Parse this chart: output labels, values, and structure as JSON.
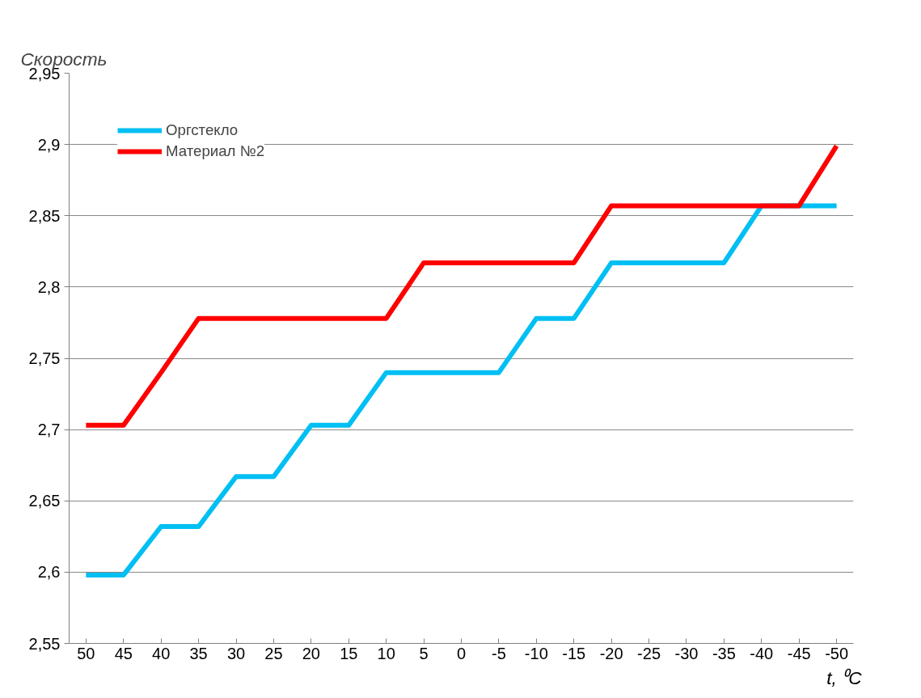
{
  "chart_data": {
    "type": "line",
    "title": "Скорость",
    "xlabel": "t, ⁰C",
    "categories": [
      "50",
      "45",
      "40",
      "35",
      "30",
      "25",
      "20",
      "15",
      "10",
      "5",
      "0",
      "-5",
      "-10",
      "-15",
      "-20",
      "-25",
      "-30",
      "-35",
      "-40",
      "-45",
      "-50"
    ],
    "series": [
      {
        "name": "Оргстекло",
        "color": "#00bff3",
        "values": [
          2.598,
          2.598,
          2.632,
          2.632,
          2.667,
          2.667,
          2.703,
          2.703,
          2.74,
          2.74,
          2.74,
          2.74,
          2.778,
          2.778,
          2.817,
          2.817,
          2.817,
          2.817,
          2.857,
          2.857,
          2.857
        ]
      },
      {
        "name": "Материал №2",
        "color": "#ff0000",
        "values": [
          2.703,
          2.703,
          2.74,
          2.778,
          2.778,
          2.778,
          2.778,
          2.778,
          2.778,
          2.817,
          2.817,
          2.817,
          2.817,
          2.817,
          2.857,
          2.857,
          2.857,
          2.857,
          2.857,
          2.857,
          2.899
        ]
      }
    ],
    "ylim": [
      2.55,
      2.95
    ],
    "yticks": [
      {
        "value": 2.55,
        "label": "2,55"
      },
      {
        "value": 2.6,
        "label": "2,6"
      },
      {
        "value": 2.65,
        "label": "2,65"
      },
      {
        "value": 2.7,
        "label": "2,7"
      },
      {
        "value": 2.75,
        "label": "2,75"
      },
      {
        "value": 2.8,
        "label": "2,8"
      },
      {
        "value": 2.85,
        "label": "2,85"
      },
      {
        "value": 2.9,
        "label": "2,9"
      },
      {
        "value": 2.95,
        "label": "2,95"
      }
    ],
    "grid": "y",
    "legend": "top left",
    "line_style": "solid",
    "marker": "none"
  }
}
